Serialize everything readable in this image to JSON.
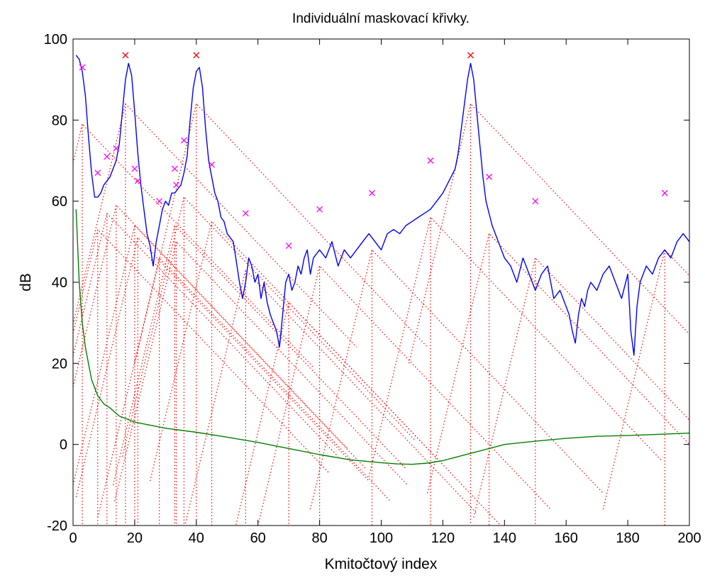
{
  "chart_data": {
    "type": "line",
    "title": "Individuální maskovací křivky.",
    "xlabel": "Kmitočtový index",
    "ylabel": "dB",
    "xlim": [
      0,
      200
    ],
    "ylim": [
      -20,
      100
    ],
    "xticks": [
      0,
      20,
      40,
      60,
      80,
      100,
      120,
      140,
      160,
      180,
      200
    ],
    "yticks": [
      -20,
      0,
      20,
      40,
      60,
      80,
      100
    ],
    "grid": false,
    "legend": "none",
    "colors": {
      "spectrum": "#0000ff",
      "threshold": "#008000",
      "masking": "#ff0000",
      "tonal_markers": "#ff0000",
      "nontonal_markers": "#ff00ff"
    },
    "series": [
      {
        "role": "spectrum",
        "style": "solid",
        "x": [
          1,
          2,
          3,
          4,
          5,
          6,
          7,
          8,
          9,
          10,
          12,
          14,
          15,
          16,
          17,
          18,
          19,
          20,
          21,
          22,
          23,
          24,
          25,
          26,
          27,
          28,
          29,
          30,
          31,
          32,
          33,
          34,
          35,
          36,
          37,
          38,
          39,
          40,
          41,
          42,
          43,
          44,
          45,
          46,
          47,
          48,
          49,
          50,
          51,
          52,
          53,
          54,
          55,
          56,
          57,
          58,
          59,
          60,
          61,
          62,
          63,
          64,
          65,
          66,
          67,
          68,
          69,
          70,
          71,
          72,
          73,
          74,
          75,
          76,
          77,
          78,
          80,
          82,
          84,
          86,
          88,
          90,
          92,
          94,
          96,
          98,
          100,
          102,
          104,
          106,
          108,
          110,
          112,
          114,
          116,
          118,
          120,
          122,
          124,
          125,
          126,
          127,
          128,
          129,
          130,
          131,
          132,
          133,
          134,
          136,
          138,
          140,
          142,
          144,
          146,
          148,
          150,
          152,
          154,
          156,
          158,
          160,
          161,
          162,
          163,
          164,
          165,
          166,
          167,
          168,
          170,
          172,
          174,
          176,
          178,
          180,
          181,
          182,
          183,
          184,
          186,
          188,
          190,
          192,
          194,
          196,
          198,
          200
        ],
        "y": [
          96,
          95,
          92,
          86,
          76,
          67,
          61,
          61,
          62,
          64,
          66,
          70,
          74,
          82,
          90,
          94,
          91,
          82,
          72,
          64,
          58,
          52,
          49,
          44,
          50,
          54,
          58,
          60,
          59,
          62,
          62,
          63,
          64,
          67,
          71,
          80,
          88,
          92,
          93,
          88,
          78,
          70,
          66,
          62,
          60,
          56,
          55,
          52,
          51,
          50,
          45,
          40,
          36,
          40,
          46,
          44,
          40,
          42,
          36,
          40,
          35,
          32,
          30,
          28,
          24,
          32,
          40,
          42,
          38,
          40,
          44,
          42,
          46,
          48,
          42,
          46,
          48,
          46,
          50,
          44,
          48,
          46,
          48,
          50,
          52,
          50,
          48,
          52,
          53,
          52,
          54,
          55,
          56,
          57,
          58,
          60,
          62,
          65,
          68,
          72,
          78,
          84,
          90,
          94,
          90,
          82,
          74,
          66,
          60,
          54,
          50,
          46,
          44,
          40,
          46,
          42,
          38,
          42,
          44,
          36,
          38,
          34,
          32,
          28,
          25,
          32,
          36,
          34,
          38,
          40,
          38,
          42,
          44,
          40,
          36,
          42,
          28,
          22,
          34,
          40,
          44,
          42,
          46,
          48,
          46,
          50,
          52,
          50
        ]
      },
      {
        "role": "absolute-threshold",
        "style": "solid",
        "x": [
          1,
          2,
          3,
          4,
          5,
          6,
          8,
          10,
          12,
          15,
          20,
          30,
          40,
          50,
          60,
          70,
          80,
          90,
          100,
          105,
          110,
          115,
          120,
          125,
          130,
          135,
          140,
          150,
          160,
          170,
          180,
          190,
          200
        ],
        "y": [
          58,
          40,
          30,
          24,
          20,
          16,
          12,
          10,
          9,
          7,
          5.5,
          4,
          3,
          1.8,
          0.5,
          -1,
          -2.5,
          -3.8,
          -4.5,
          -4.8,
          -4.9,
          -4.6,
          -4,
          -3,
          -2,
          -1,
          0,
          0.8,
          1.5,
          2,
          2.2,
          2.5,
          2.8
        ]
      }
    ],
    "maskers": {
      "tonal": [
        {
          "x": 17,
          "y": 96
        },
        {
          "x": 40,
          "y": 96
        },
        {
          "x": 129,
          "y": 96
        }
      ],
      "nontonal": [
        {
          "x": 3,
          "y": 93
        },
        {
          "x": 8,
          "y": 67
        },
        {
          "x": 11,
          "y": 71
        },
        {
          "x": 14,
          "y": 73
        },
        {
          "x": 20,
          "y": 68
        },
        {
          "x": 21,
          "y": 65
        },
        {
          "x": 28,
          "y": 60
        },
        {
          "x": 33,
          "y": 68
        },
        {
          "x": 33.5,
          "y": 64
        },
        {
          "x": 36,
          "y": 75
        },
        {
          "x": 45,
          "y": 69
        },
        {
          "x": 56,
          "y": 57
        },
        {
          "x": 70,
          "y": 49
        },
        {
          "x": 80,
          "y": 58
        },
        {
          "x": 97,
          "y": 62
        },
        {
          "x": 116,
          "y": 70
        },
        {
          "x": 135,
          "y": 66
        },
        {
          "x": 150,
          "y": 60
        },
        {
          "x": 192,
          "y": 62
        }
      ]
    }
  }
}
